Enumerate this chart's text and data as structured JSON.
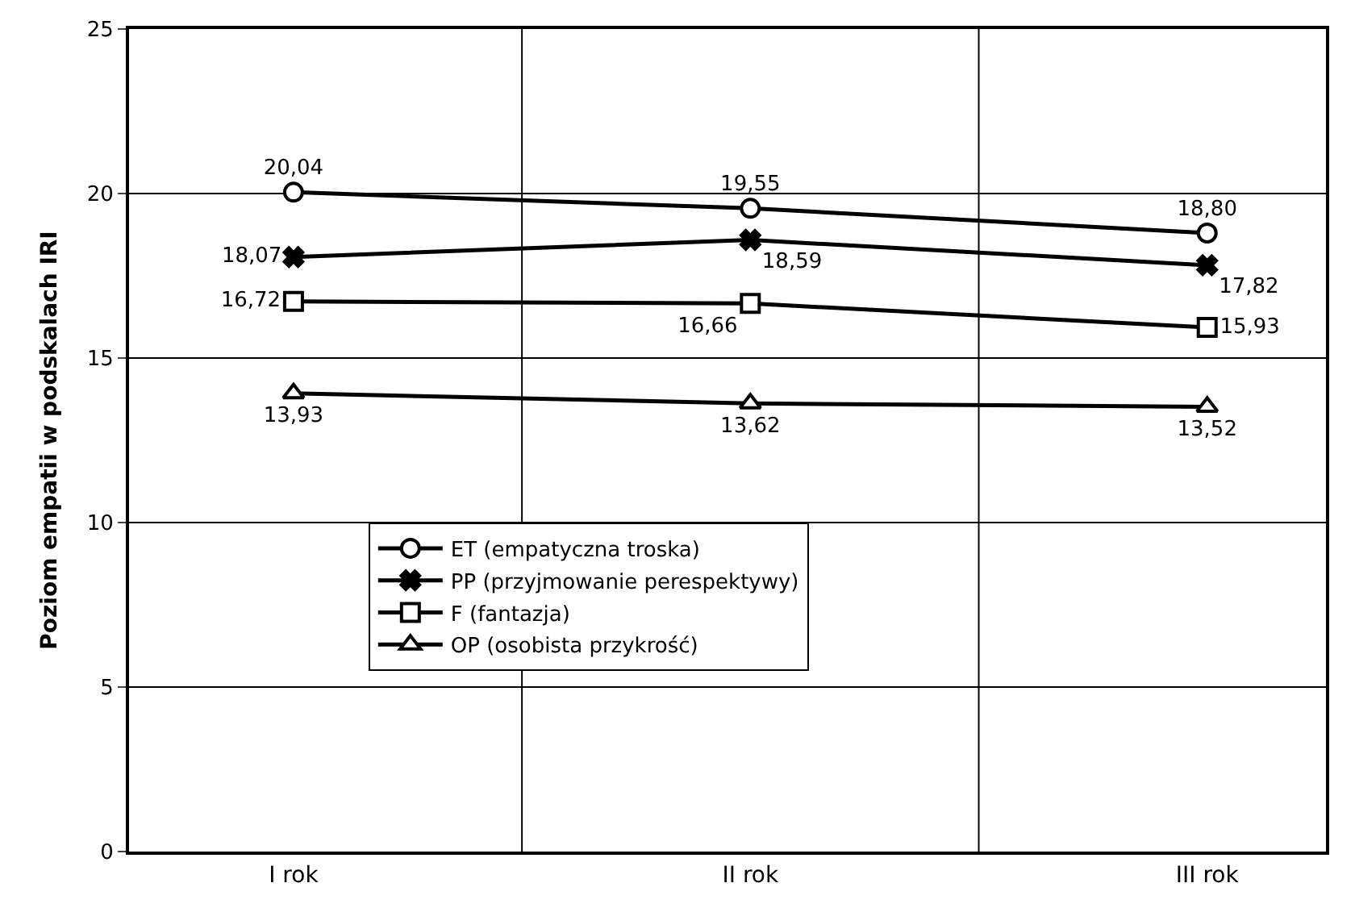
{
  "chart_data": {
    "type": "line",
    "ylabel": "Poziom empatii w podskalach IRI",
    "categories": [
      "I rok",
      "II rok",
      "III rok"
    ],
    "ylim": [
      0,
      25
    ],
    "yticks": [
      0,
      5,
      10,
      15,
      20,
      25
    ],
    "grid": true,
    "legend": "bottom",
    "series": [
      {
        "name": "ET (empatyczna troska)",
        "color": "#000000",
        "marker": "circle",
        "values": [
          20.04,
          19.55,
          18.8
        ],
        "value_labels": [
          "20,04",
          "19,55",
          "18,80"
        ]
      },
      {
        "name": "PP (przyjmowanie perespektywy)",
        "color": "#000000",
        "marker": "cross",
        "values": [
          18.07,
          18.59,
          17.82
        ],
        "value_labels": [
          "18,07",
          "18,59",
          "17,82"
        ]
      },
      {
        "name": "F (fantazja)",
        "color": "#000000",
        "marker": "square",
        "values": [
          16.72,
          16.66,
          15.93
        ],
        "value_labels": [
          "16,72",
          "16,66",
          "15,93"
        ]
      },
      {
        "name": "OP (osobista przykrość)",
        "color": "#000000",
        "marker": "triangle",
        "values": [
          13.93,
          13.62,
          13.52
        ],
        "value_labels": [
          "13,93",
          "13,62",
          "13,52"
        ]
      }
    ]
  }
}
